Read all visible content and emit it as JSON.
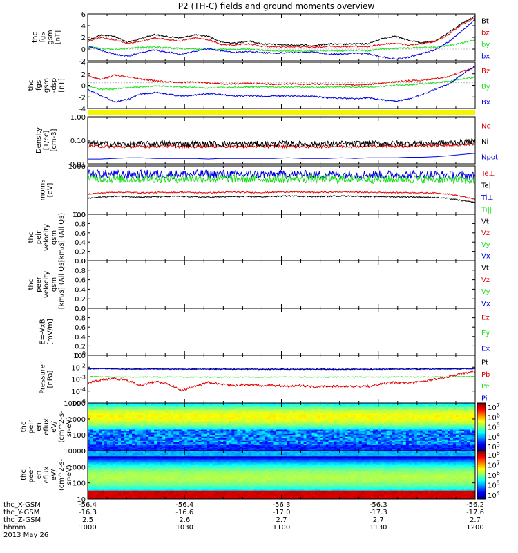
{
  "title": "P2 (TH-C) fields and ground moments overview",
  "colors": {
    "black": "#000000",
    "red": "#e00000",
    "green": "#1adf1a",
    "blue": "#0000e0",
    "yellow": "#f5f500"
  },
  "chart_data": [
    {
      "type": "line",
      "ylabel": [
        "thc",
        "fgs",
        "gsm",
        "[nT]"
      ],
      "yticks": [
        "6",
        "4",
        "2",
        "0",
        "-2"
      ],
      "ylim": [
        -2,
        6
      ],
      "series": [
        {
          "name": "Bt",
          "color": "#000000",
          "shape": "bt",
          "values": [
            1.5,
            2.4,
            2.2,
            1.1,
            1.8,
            2.5,
            2.1,
            1.9,
            2.4,
            2.2,
            1.2,
            1.0,
            1.4,
            0.9,
            0.8,
            0.7,
            0.7,
            0.6,
            0.9,
            0.8,
            0.9,
            0.9,
            1.8,
            2.2,
            1.5,
            1.1,
            1.3,
            2.8,
            4.4,
            5.6
          ]
        },
        {
          "name": "bz",
          "color": "#e00000",
          "shape": "bz",
          "values": [
            1.3,
            2.0,
            1.6,
            1.0,
            1.3,
            1.9,
            1.6,
            1.4,
            1.9,
            1.6,
            0.8,
            0.7,
            0.9,
            0.5,
            0.4,
            0.4,
            0.4,
            0.3,
            0.5,
            0.4,
            0.5,
            0.4,
            0.8,
            1.0,
            0.7,
            0.9,
            1.3,
            2.5,
            4.2,
            5.3
          ]
        },
        {
          "name": "by",
          "color": "#1adf1a",
          "shape": "by",
          "values": [
            0.4,
            0.1,
            -0.1,
            0.1,
            0.3,
            0.4,
            0.2,
            0.1,
            0.0,
            -0.1,
            0.0,
            -0.1,
            0.0,
            -0.2,
            -0.3,
            -0.3,
            -0.4,
            -0.2,
            -0.3,
            -0.3,
            -0.2,
            -0.3,
            0.0,
            0.1,
            0.2,
            0.3,
            0.3,
            0.6,
            1.0,
            1.6
          ]
        },
        {
          "name": "bx",
          "color": "#0000e0",
          "shape": "bx",
          "values": [
            0.6,
            -0.2,
            -0.9,
            -1.2,
            -0.6,
            -0.2,
            -0.5,
            -0.9,
            -0.4,
            0.1,
            -0.3,
            -0.6,
            -0.4,
            -0.6,
            -0.7,
            -0.6,
            -0.6,
            -0.5,
            -0.9,
            -0.8,
            -0.7,
            -0.8,
            -1.3,
            -1.7,
            -1.4,
            -0.8,
            -0.1,
            1.2,
            3.1,
            5.0
          ]
        }
      ]
    },
    {
      "type": "line",
      "ylabel": [
        "thc",
        "fgs",
        "gsm",
        "-dsp",
        "[nT]"
      ],
      "yticks": [
        "4",
        "2",
        "0",
        "-2",
        "-4"
      ],
      "ylim": [
        -5,
        4
      ],
      "series": [
        {
          "name": "Bz",
          "color": "#e00000",
          "shape": "Bz",
          "values": [
            1.4,
            0.6,
            1.5,
            1.2,
            0.7,
            0.4,
            0.2,
            0.1,
            0.2,
            0.0,
            -0.2,
            -0.2,
            -0.1,
            -0.2,
            -0.3,
            -0.2,
            -0.3,
            -0.2,
            -0.3,
            -0.3,
            -0.4,
            -0.3,
            -0.1,
            0.2,
            0.4,
            0.5,
            0.8,
            1.2,
            2.2,
            3.0
          ]
        },
        {
          "name": "By",
          "color": "#1adf1a",
          "shape": "By",
          "values": [
            -0.6,
            -1.3,
            -1.2,
            -1.0,
            -0.8,
            -0.6,
            -0.7,
            -0.8,
            -0.9,
            -1.0,
            -0.9,
            -0.9,
            -0.8,
            -0.8,
            -0.9,
            -0.8,
            -0.8,
            -0.9,
            -0.8,
            -0.8,
            -0.9,
            -0.8,
            -0.7,
            -0.5,
            -0.4,
            -0.2,
            0.0,
            0.3,
            0.7,
            1.1
          ]
        },
        {
          "name": "Bx",
          "color": "#0000e0",
          "shape": "Bx",
          "values": [
            -1.3,
            -2.5,
            -3.7,
            -3.2,
            -2.2,
            -1.9,
            -2.2,
            -2.6,
            -2.4,
            -2.1,
            -2.3,
            -2.6,
            -2.5,
            -2.6,
            -2.6,
            -2.5,
            -2.6,
            -2.7,
            -2.9,
            -3.0,
            -3.1,
            -2.9,
            -3.3,
            -3.6,
            -3.2,
            -2.3,
            -1.3,
            -0.3,
            1.6,
            3.3
          ]
        }
      ]
    },
    {
      "type": "line",
      "ylabel": [
        "Density",
        "[1/cc]",
        "[cm-3]"
      ],
      "yticks": [
        "1.00",
        "0.10",
        "0.01"
      ],
      "ylim": [
        0.01,
        1.0
      ],
      "yscale": "log",
      "series": [
        {
          "name": "Ne",
          "color": "#e00000",
          "values": [
            0.058,
            0.055,
            0.054,
            0.053,
            0.054,
            0.055,
            0.056,
            0.055,
            0.054,
            0.055,
            0.055,
            0.054,
            0.055,
            0.055,
            0.055,
            0.056,
            0.055,
            0.054,
            0.055,
            0.056,
            0.056,
            0.057,
            0.058,
            0.057,
            0.057,
            0.058,
            0.06,
            0.062,
            0.066,
            0.07
          ]
        },
        {
          "name": "Ni",
          "color": "#000000",
          "values": [
            0.072,
            0.07,
            0.068,
            0.069,
            0.07,
            0.071,
            0.071,
            0.07,
            0.069,
            0.07,
            0.07,
            0.069,
            0.07,
            0.071,
            0.07,
            0.071,
            0.07,
            0.069,
            0.07,
            0.071,
            0.072,
            0.072,
            0.073,
            0.073,
            0.073,
            0.074,
            0.076,
            0.078,
            0.083,
            0.088
          ]
        },
        {
          "name": "Npot",
          "color": "#0000e0",
          "values": [
            0.016,
            0.016,
            0.017,
            0.018,
            0.018,
            0.017,
            0.017,
            0.017,
            0.017,
            0.016,
            0.017,
            0.017,
            0.017,
            0.017,
            0.017,
            0.018,
            0.017,
            0.017,
            0.017,
            0.018,
            0.017,
            0.018,
            0.018,
            0.018,
            0.019,
            0.019,
            0.02,
            0.022,
            0.025,
            0.028
          ]
        }
      ]
    },
    {
      "type": "line",
      "ylabel": [
        "moms",
        "[eV]"
      ],
      "yticks": [
        "1000",
        "100"
      ],
      "ylim": [
        100,
        5000
      ],
      "yscale": "log",
      "series": [
        {
          "name": "Te⊥",
          "color": "#e00000",
          "values": [
            520,
            560,
            600,
            590,
            570,
            580,
            590,
            600,
            580,
            570,
            590,
            600,
            590,
            580,
            600,
            610,
            600,
            590,
            600,
            610,
            600,
            590,
            590,
            580,
            580,
            570,
            560,
            520,
            420,
            330
          ]
        },
        {
          "name": "Te||",
          "color": "#000000",
          "values": [
            360,
            400,
            430,
            420,
            400,
            410,
            420,
            430,
            410,
            400,
            410,
            420,
            420,
            410,
            430,
            440,
            430,
            420,
            430,
            440,
            430,
            420,
            420,
            410,
            410,
            400,
            390,
            360,
            300,
            260
          ]
        },
        {
          "name": "Ti⊥",
          "color": "#0000e0",
          "values": [
            2700,
            2600,
            2500,
            2450,
            2550,
            2600,
            2550,
            2500,
            2550,
            2600,
            2550,
            2500,
            2550,
            2520,
            2500,
            2530,
            2500,
            2480,
            2500,
            2520,
            2500,
            2480,
            2450,
            2460,
            2470,
            2500,
            2450,
            2400,
            2300,
            2200
          ]
        },
        {
          "name": "Ti||",
          "color": "#1adf1a",
          "values": [
            1900,
            1800,
            1750,
            1700,
            1760,
            1800,
            1770,
            1740,
            1760,
            1790,
            1760,
            1740,
            1760,
            1750,
            1740,
            1750,
            1740,
            1720,
            1740,
            1750,
            1740,
            1720,
            1700,
            1710,
            1720,
            1730,
            1700,
            1650,
            1580,
            1500
          ]
        }
      ]
    },
    {
      "type": "line",
      "ylabel": [
        "thc",
        "peir",
        "velocity",
        "gsm",
        "[km/s] (All Qs)"
      ],
      "yticks": [
        "1.0",
        "0.8",
        "0.6",
        "0.4",
        "0.2",
        "0.0"
      ],
      "ylim": [
        0,
        1
      ],
      "series": [
        {
          "name": "Vt",
          "color": "#000000",
          "values": []
        },
        {
          "name": "Vz",
          "color": "#e00000",
          "values": []
        },
        {
          "name": "Vy",
          "color": "#1adf1a",
          "values": []
        },
        {
          "name": "Vx",
          "color": "#0000e0",
          "values": []
        }
      ]
    },
    {
      "type": "line",
      "ylabel": [
        "thc",
        "peer",
        "velocity",
        "gsm",
        "[km/s] (All Qs)"
      ],
      "yticks": [
        "1.0",
        "0.8",
        "0.6",
        "0.4",
        "0.2",
        "0.0"
      ],
      "ylim": [
        0,
        1
      ],
      "series": [
        {
          "name": "Vt",
          "color": "#000000",
          "values": []
        },
        {
          "name": "Vz",
          "color": "#e00000",
          "values": []
        },
        {
          "name": "Vy",
          "color": "#1adf1a",
          "values": []
        },
        {
          "name": "Vx",
          "color": "#0000e0",
          "values": []
        }
      ]
    },
    {
      "type": "line",
      "ylabel": [
        "E=-VxB",
        "[mV/m]"
      ],
      "yticks": [
        "1.0",
        "0.8",
        "0.6",
        "0.4",
        "0.2",
        "0.0"
      ],
      "ylim": [
        0,
        1
      ],
      "series": [
        {
          "name": "Ez",
          "color": "#e00000",
          "values": []
        },
        {
          "name": "Ey",
          "color": "#1adf1a",
          "values": []
        },
        {
          "name": "Ex",
          "color": "#0000e0",
          "values": []
        }
      ]
    },
    {
      "type": "line",
      "ylabel": [
        "Pressure",
        "[nPa]"
      ],
      "yticks": [
        "10^0",
        "10^-2",
        "10^-3",
        "10^-4",
        "10^-6"
      ],
      "ylim": [
        -6,
        0
      ],
      "yscale": "log",
      "series": [
        {
          "name": "Pt",
          "color": "#000000",
          "values": [
            -1.7,
            -1.65,
            -1.7,
            -1.72,
            -1.72,
            -1.7,
            -1.72,
            -1.73,
            -1.72,
            -1.72,
            -1.73,
            -1.74,
            -1.73,
            -1.74,
            -1.74,
            -1.74,
            -1.74,
            -1.74,
            -1.75,
            -1.75,
            -1.74,
            -1.74,
            -1.73,
            -1.72,
            -1.72,
            -1.72,
            -1.71,
            -1.7,
            -1.68,
            -1.65
          ]
        },
        {
          "name": "Pb",
          "color": "#e00000",
          "values": [
            -3.5,
            -3.1,
            -2.9,
            -3.2,
            -3.8,
            -3.3,
            -3.6,
            -4.4,
            -3.9,
            -3.4,
            -3.6,
            -3.8,
            -3.7,
            -3.8,
            -3.8,
            -3.9,
            -3.8,
            -4.0,
            -3.9,
            -3.9,
            -3.9,
            -3.9,
            -3.6,
            -3.4,
            -3.5,
            -3.3,
            -3.0,
            -2.7,
            -2.3,
            -2.0
          ]
        },
        {
          "name": "Pe",
          "color": "#1adf1a",
          "values": [
            -2.7,
            -2.7,
            -2.75,
            -2.75,
            -2.75,
            -2.74,
            -2.74,
            -2.75,
            -2.75,
            -2.75,
            -2.75,
            -2.75,
            -2.75,
            -2.75,
            -2.74,
            -2.74,
            -2.75,
            -2.75,
            -2.75,
            -2.74,
            -2.74,
            -2.74,
            -2.74,
            -2.73,
            -2.73,
            -2.73,
            -2.72,
            -2.71,
            -2.7,
            -2.68
          ]
        },
        {
          "name": "Pi",
          "color": "#0000e0",
          "values": [
            -1.72,
            -1.68,
            -1.73,
            -1.75,
            -1.75,
            -1.73,
            -1.75,
            -1.76,
            -1.75,
            -1.75,
            -1.76,
            -1.77,
            -1.76,
            -1.77,
            -1.77,
            -1.77,
            -1.77,
            -1.77,
            -1.78,
            -1.78,
            -1.77,
            -1.77,
            -1.76,
            -1.75,
            -1.75,
            -1.75,
            -1.74,
            -1.73,
            -1.72,
            -1.7
          ]
        }
      ]
    },
    {
      "type": "heatmap",
      "ylabel": [
        "thc",
        "peir",
        "en",
        "eflux",
        "eV/",
        "(cm^2-s-",
        "sr-eV)"
      ],
      "yticks": [
        "10000",
        "1000",
        "100",
        "10"
      ],
      "yscale": "log",
      "colorbar": {
        "ticks": [
          "10^7",
          "10^6",
          "10^5",
          "10^4",
          "10^3"
        ]
      }
    },
    {
      "type": "heatmap",
      "ylabel": [
        "thc",
        "peer",
        "en",
        "eflux",
        "eV/",
        "(cm^2-s-",
        "sr-eV)"
      ],
      "yticks": [
        "10000",
        "1000",
        "100",
        "10"
      ],
      "yscale": "log",
      "colorbar": {
        "ticks": [
          "10^8",
          "10^7",
          "10^6",
          "10^5",
          "10^4"
        ]
      }
    }
  ],
  "x_axis": {
    "row_labels": [
      "thc_X-GSM",
      "thc_Y-GSM",
      "thc_Z-GSM",
      "hhmm",
      "2013 May 26"
    ],
    "columns": [
      [
        "-56.4",
        "-16.3",
        "2.5",
        "1000"
      ],
      [
        "-56.4",
        "-16.6",
        "2.6",
        "1030"
      ],
      [
        "-56.3",
        "-17.0",
        "2.7",
        "1100"
      ],
      [
        "-56.3",
        "-17.3",
        "2.7",
        "1130"
      ],
      [
        "-56.2",
        "-17.6",
        "2.7",
        "1200"
      ]
    ]
  }
}
